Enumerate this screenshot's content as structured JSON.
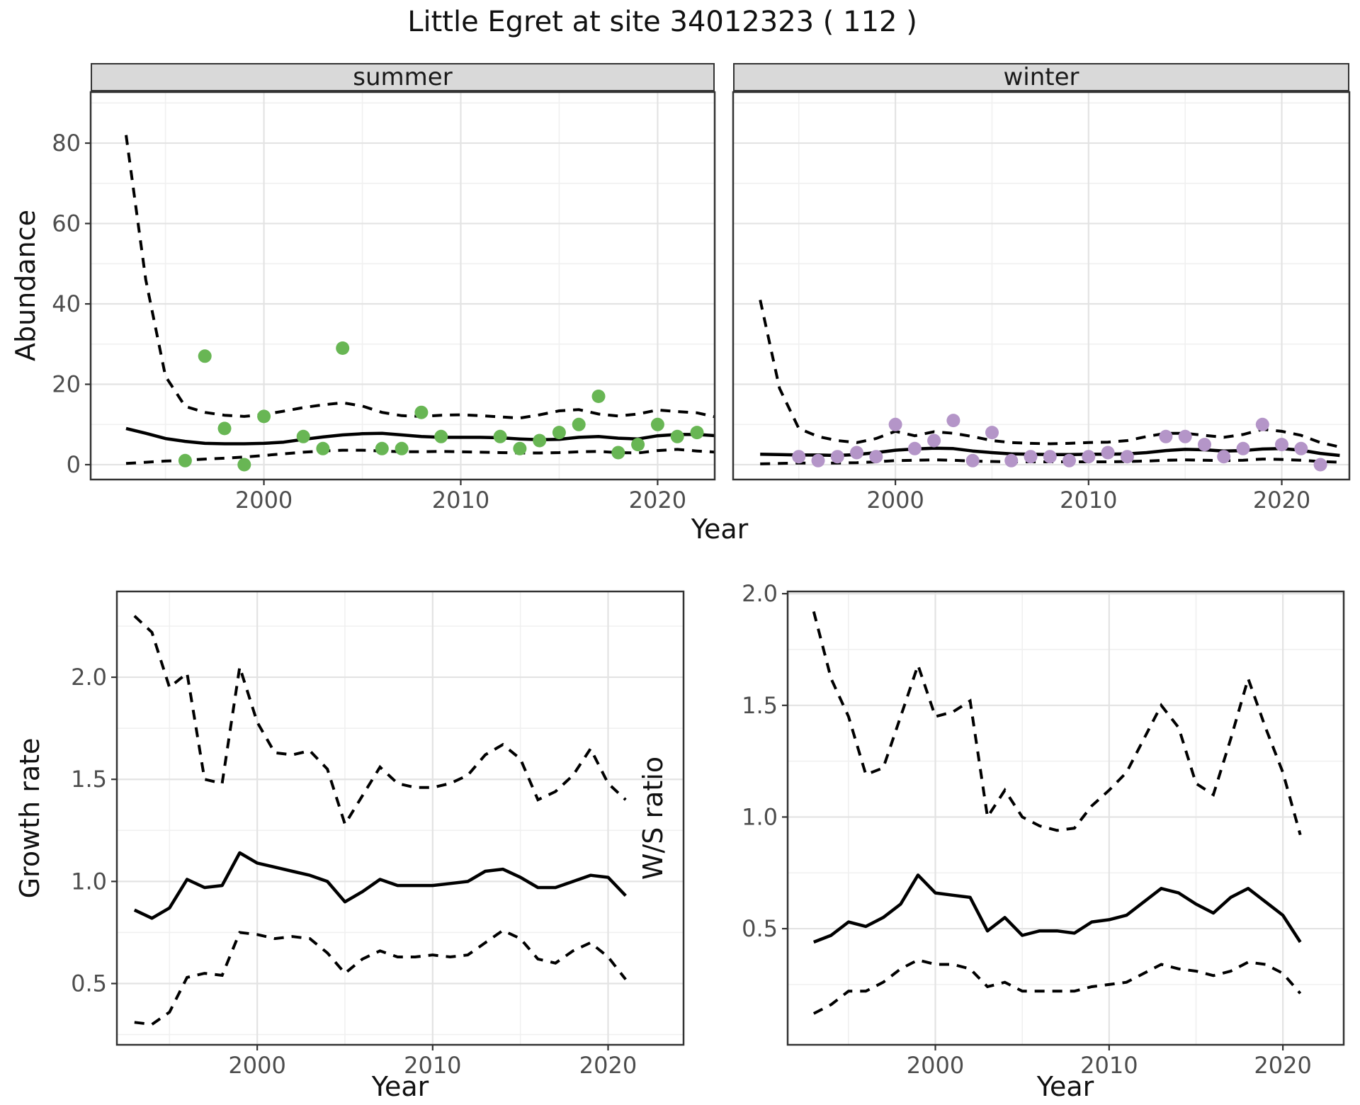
{
  "title": "Little Egret at site 34012323 ( 112 )",
  "facets": {
    "summer_label": "summer",
    "winter_label": "winter"
  },
  "axis_titles": {
    "abundance": "Abundance",
    "year_top": "Year",
    "growth": "Growth rate",
    "year_growth": "Year",
    "ws": "W/S ratio",
    "year_ws": "Year"
  },
  "colors": {
    "summer_point": "#68b654",
    "winter_point": "#b495c8",
    "line": "#000000",
    "panel_border": "#333333",
    "grid_major": "#e3e3e3",
    "grid_minor": "#f0f0f0",
    "strip_bg": "#d9d9d9",
    "tick_text": "#4d4d4d"
  },
  "chart_data": [
    {
      "id": "summer",
      "type": "scatter",
      "strip": "summer",
      "xlabel": "Year",
      "ylabel": "Abundance",
      "xlim": [
        1991.2,
        2022.9
      ],
      "ylim": [
        -3.7,
        92.7
      ],
      "x_ticks": [
        2000,
        2010,
        2020
      ],
      "x_tick_labels": [
        "2000",
        "2010",
        "2020"
      ],
      "x_minor": [
        1995,
        2005,
        2015
      ],
      "y_ticks": [
        0,
        20,
        40,
        60,
        80
      ],
      "y_tick_labels": [
        "0",
        "20",
        "40",
        "60",
        "80"
      ],
      "y_minor": [
        10,
        30,
        50,
        70,
        90
      ],
      "show_y_axis": true,
      "points": {
        "x": [
          1996,
          1997,
          1998,
          1999,
          2000,
          2002,
          2003,
          2004,
          2006,
          2007,
          2008,
          2009,
          2012,
          2013,
          2014,
          2015,
          2016,
          2017,
          2018,
          2019,
          2020,
          2021,
          2022
        ],
        "y": [
          1,
          27,
          9,
          0,
          12,
          7,
          4,
          29,
          4,
          4,
          13,
          7,
          7,
          4,
          6,
          8,
          10,
          17,
          3,
          5,
          10,
          7,
          8
        ]
      },
      "median": {
        "x": [
          1993,
          1994,
          1995,
          1996,
          1997,
          1998,
          1999,
          2000,
          2001,
          2002,
          2003,
          2004,
          2005,
          2006,
          2007,
          2008,
          2009,
          2010,
          2011,
          2012,
          2013,
          2014,
          2015,
          2016,
          2017,
          2018,
          2019,
          2020,
          2021,
          2022,
          2023
        ],
        "y": [
          9.0,
          7.8,
          6.5,
          5.8,
          5.3,
          5.2,
          5.2,
          5.3,
          5.6,
          6.3,
          6.9,
          7.4,
          7.7,
          7.8,
          7.4,
          7.0,
          6.8,
          6.8,
          6.8,
          6.7,
          6.4,
          6.2,
          6.3,
          6.8,
          7.0,
          6.6,
          6.4,
          7.2,
          7.5,
          7.5,
          7.2
        ]
      },
      "upper": {
        "x": [
          1993,
          1994,
          1995,
          1996,
          1997,
          1998,
          1999,
          2000,
          2001,
          2002,
          2003,
          2004,
          2005,
          2006,
          2007,
          2008,
          2009,
          2010,
          2011,
          2012,
          2013,
          2014,
          2015,
          2016,
          2017,
          2018,
          2019,
          2020,
          2021,
          2022,
          2023
        ],
        "y": [
          82,
          46,
          22,
          14.5,
          13,
          12.3,
          12,
          12.5,
          13.3,
          14.2,
          14.9,
          15.4,
          14.6,
          13.0,
          12.2,
          12.0,
          12.3,
          12.4,
          12.2,
          11.9,
          11.6,
          12.4,
          13.4,
          13.7,
          12.6,
          12.1,
          12.6,
          13.6,
          13.2,
          12.9,
          11.8
        ]
      },
      "lower": {
        "x": [
          1993,
          1994,
          1995,
          1996,
          1997,
          1998,
          1999,
          2000,
          2001,
          2002,
          2003,
          2004,
          2005,
          2006,
          2007,
          2008,
          2009,
          2010,
          2011,
          2012,
          2013,
          2014,
          2015,
          2016,
          2017,
          2018,
          2019,
          2020,
          2021,
          2022,
          2023
        ],
        "y": [
          0.3,
          0.6,
          0.9,
          1.1,
          1.4,
          1.6,
          1.9,
          2.3,
          2.7,
          3.1,
          3.4,
          3.6,
          3.6,
          3.4,
          3.2,
          3.2,
          3.3,
          3.2,
          3.1,
          3.0,
          2.9,
          2.9,
          3.0,
          3.2,
          3.3,
          3.0,
          2.9,
          3.5,
          3.8,
          3.4,
          3.1
        ]
      }
    },
    {
      "id": "winter",
      "type": "scatter",
      "strip": "winter",
      "xlabel": "Year",
      "ylabel": "Abundance",
      "xlim": [
        1991.6,
        2023.5
      ],
      "ylim": [
        -3.7,
        92.7
      ],
      "x_ticks": [
        2000,
        2010,
        2020
      ],
      "x_tick_labels": [
        "2000",
        "2010",
        "2020"
      ],
      "x_minor": [
        1995,
        2005,
        2015
      ],
      "y_ticks": [
        0,
        20,
        40,
        60,
        80
      ],
      "y_tick_labels": [
        "0",
        "20",
        "40",
        "60",
        "80"
      ],
      "y_minor": [
        10,
        30,
        50,
        70,
        90
      ],
      "show_y_axis": false,
      "points": {
        "x": [
          1995,
          1996,
          1997,
          1998,
          1999,
          2000,
          2001,
          2002,
          2003,
          2004,
          2005,
          2006,
          2007,
          2008,
          2009,
          2010,
          2011,
          2012,
          2014,
          2015,
          2016,
          2017,
          2018,
          2019,
          2020,
          2021,
          2022
        ],
        "y": [
          2,
          1,
          2,
          3,
          2,
          10,
          4,
          6,
          11,
          1,
          8,
          1,
          2,
          2,
          1,
          2,
          3,
          2,
          7,
          7,
          5,
          2,
          4,
          10,
          5,
          4,
          0
        ]
      },
      "median": {
        "x": [
          1993,
          1994,
          1995,
          1996,
          1997,
          1998,
          1999,
          2000,
          2001,
          2002,
          2003,
          2004,
          2005,
          2006,
          2007,
          2008,
          2009,
          2010,
          2011,
          2012,
          2013,
          2014,
          2015,
          2016,
          2017,
          2018,
          2019,
          2020,
          2021,
          2022,
          2023
        ],
        "y": [
          2.6,
          2.5,
          2.4,
          2.4,
          2.3,
          2.5,
          3.0,
          3.6,
          3.9,
          4.1,
          4.0,
          3.4,
          3.0,
          2.7,
          2.6,
          2.5,
          2.5,
          2.6,
          2.6,
          2.7,
          3.0,
          3.5,
          3.8,
          3.7,
          3.4,
          3.5,
          3.9,
          4.0,
          3.6,
          2.8,
          2.3
        ]
      },
      "upper": {
        "x": [
          1993,
          1994,
          1995,
          1996,
          1997,
          1998,
          1999,
          2000,
          2001,
          2002,
          2003,
          2004,
          2005,
          2006,
          2007,
          2008,
          2009,
          2010,
          2011,
          2012,
          2013,
          2014,
          2015,
          2016,
          2017,
          2018,
          2019,
          2020,
          2021,
          2022,
          2023
        ],
        "y": [
          41,
          19,
          9.0,
          7.0,
          6.0,
          5.5,
          6.5,
          8.3,
          7.2,
          8.2,
          7.8,
          7.0,
          6.0,
          5.5,
          5.3,
          5.2,
          5.3,
          5.5,
          5.6,
          6.0,
          7.0,
          7.8,
          7.8,
          7.3,
          6.8,
          7.5,
          8.8,
          8.3,
          7.3,
          5.5,
          4.4
        ]
      },
      "lower": {
        "x": [
          1993,
          1994,
          1995,
          1996,
          1997,
          1998,
          1999,
          2000,
          2001,
          2002,
          2003,
          2004,
          2005,
          2006,
          2007,
          2008,
          2009,
          2010,
          2011,
          2012,
          2013,
          2014,
          2015,
          2016,
          2017,
          2018,
          2019,
          2020,
          2021,
          2022,
          2023
        ],
        "y": [
          0.2,
          0.3,
          0.4,
          0.4,
          0.4,
          0.5,
          0.7,
          1.0,
          1.1,
          1.2,
          1.1,
          0.9,
          0.8,
          0.7,
          0.7,
          0.7,
          0.7,
          0.7,
          0.7,
          0.8,
          0.9,
          1.1,
          1.2,
          1.1,
          1.0,
          1.1,
          1.4,
          1.3,
          1.1,
          0.8,
          0.6
        ]
      }
    },
    {
      "id": "growth",
      "type": "line",
      "strip": null,
      "xlabel": "Year",
      "ylabel": "Growth rate",
      "xlim": [
        1992.0,
        2024.3
      ],
      "ylim": [
        0.2,
        2.42
      ],
      "x_ticks": [
        2000,
        2010,
        2020
      ],
      "x_tick_labels": [
        "2000",
        "2010",
        "2020"
      ],
      "x_minor": [
        1995,
        2005,
        2015
      ],
      "y_ticks": [
        0.5,
        1.0,
        1.5,
        2.0
      ],
      "y_tick_labels": [
        "0.5",
        "1.0",
        "1.5",
        "2.0"
      ],
      "y_minor": [
        0.25,
        0.75,
        1.25,
        1.75,
        2.25
      ],
      "show_y_axis": true,
      "points": null,
      "median": {
        "x": [
          1993,
          1994,
          1995,
          1996,
          1997,
          1998,
          1999,
          2000,
          2001,
          2002,
          2003,
          2004,
          2005,
          2006,
          2007,
          2008,
          2009,
          2010,
          2011,
          2012,
          2013,
          2014,
          2015,
          2016,
          2017,
          2018,
          2019,
          2020,
          2021
        ],
        "y": [
          0.86,
          0.82,
          0.87,
          1.01,
          0.97,
          0.98,
          1.14,
          1.09,
          1.07,
          1.05,
          1.03,
          1.0,
          0.9,
          0.95,
          1.01,
          0.98,
          0.98,
          0.98,
          0.99,
          1.0,
          1.05,
          1.06,
          1.02,
          0.97,
          0.97,
          1.0,
          1.03,
          1.02,
          0.93
        ]
      },
      "upper": {
        "x": [
          1993,
          1994,
          1995,
          1996,
          1997,
          1998,
          1999,
          2000,
          2001,
          2002,
          2003,
          2004,
          2005,
          2006,
          2007,
          2008,
          2009,
          2010,
          2011,
          2012,
          2013,
          2014,
          2015,
          2016,
          2017,
          2018,
          2019,
          2020,
          2021
        ],
        "y": [
          2.3,
          2.22,
          1.95,
          2.02,
          1.5,
          1.48,
          2.05,
          1.78,
          1.63,
          1.62,
          1.64,
          1.55,
          1.28,
          1.42,
          1.56,
          1.48,
          1.46,
          1.46,
          1.48,
          1.52,
          1.62,
          1.67,
          1.6,
          1.4,
          1.44,
          1.52,
          1.65,
          1.48,
          1.4
        ]
      },
      "lower": {
        "x": [
          1993,
          1994,
          1995,
          1996,
          1997,
          1998,
          1999,
          2000,
          2001,
          2002,
          2003,
          2004,
          2005,
          2006,
          2007,
          2008,
          2009,
          2010,
          2011,
          2012,
          2013,
          2014,
          2015,
          2016,
          2017,
          2018,
          2019,
          2020,
          2021
        ],
        "y": [
          0.31,
          0.3,
          0.36,
          0.53,
          0.55,
          0.54,
          0.75,
          0.74,
          0.72,
          0.73,
          0.72,
          0.65,
          0.55,
          0.62,
          0.66,
          0.63,
          0.63,
          0.64,
          0.63,
          0.64,
          0.7,
          0.76,
          0.72,
          0.62,
          0.6,
          0.66,
          0.7,
          0.63,
          0.52
        ]
      }
    },
    {
      "id": "ws",
      "type": "line",
      "strip": null,
      "xlabel": "Year",
      "ylabel": "W/S ratio",
      "xlim": [
        1991.5,
        2023.5
      ],
      "ylim": [
        -0.02,
        2.01
      ],
      "x_ticks": [
        2000,
        2010,
        2020
      ],
      "x_tick_labels": [
        "2000",
        "2010",
        "2020"
      ],
      "x_minor": [
        1995,
        2005,
        2015
      ],
      "y_ticks": [
        0.5,
        1.0,
        1.5,
        2.0
      ],
      "y_tick_labels": [
        "0.5",
        "1.0",
        "1.5",
        "2.0"
      ],
      "y_minor": [
        0.25,
        0.75,
        1.25,
        1.75
      ],
      "show_y_axis": true,
      "points": null,
      "median": {
        "x": [
          1993,
          1994,
          1995,
          1996,
          1997,
          1998,
          1999,
          2000,
          2001,
          2002,
          2003,
          2004,
          2005,
          2006,
          2007,
          2008,
          2009,
          2010,
          2011,
          2012,
          2013,
          2014,
          2015,
          2016,
          2017,
          2018,
          2019,
          2020,
          2021
        ],
        "y": [
          0.44,
          0.47,
          0.53,
          0.51,
          0.55,
          0.61,
          0.74,
          0.66,
          0.65,
          0.64,
          0.49,
          0.55,
          0.47,
          0.49,
          0.49,
          0.48,
          0.53,
          0.54,
          0.56,
          0.62,
          0.68,
          0.66,
          0.61,
          0.57,
          0.64,
          0.68,
          0.62,
          0.56,
          0.44
        ]
      },
      "upper": {
        "x": [
          1993,
          1994,
          1995,
          1996,
          1997,
          1998,
          1999,
          2000,
          2001,
          2002,
          2003,
          2004,
          2005,
          2006,
          2007,
          2008,
          2009,
          2010,
          2011,
          2012,
          2013,
          2014,
          2015,
          2016,
          2017,
          2018,
          2019,
          2020,
          2021
        ],
        "y": [
          1.92,
          1.62,
          1.45,
          1.19,
          1.22,
          1.45,
          1.68,
          1.45,
          1.47,
          1.52,
          1.0,
          1.12,
          1.0,
          0.96,
          0.94,
          0.95,
          1.05,
          1.12,
          1.2,
          1.35,
          1.5,
          1.4,
          1.15,
          1.1,
          1.35,
          1.62,
          1.4,
          1.2,
          0.92
        ]
      },
      "lower": {
        "x": [
          1993,
          1994,
          1995,
          1996,
          1997,
          1998,
          1999,
          2000,
          2001,
          2002,
          2003,
          2004,
          2005,
          2006,
          2007,
          2008,
          2009,
          2010,
          2011,
          2012,
          2013,
          2014,
          2015,
          2016,
          2017,
          2018,
          2019,
          2020,
          2021
        ],
        "y": [
          0.12,
          0.16,
          0.22,
          0.22,
          0.26,
          0.32,
          0.36,
          0.34,
          0.34,
          0.32,
          0.24,
          0.26,
          0.22,
          0.22,
          0.22,
          0.22,
          0.24,
          0.25,
          0.26,
          0.3,
          0.34,
          0.32,
          0.31,
          0.29,
          0.31,
          0.35,
          0.34,
          0.3,
          0.21
        ]
      }
    }
  ]
}
